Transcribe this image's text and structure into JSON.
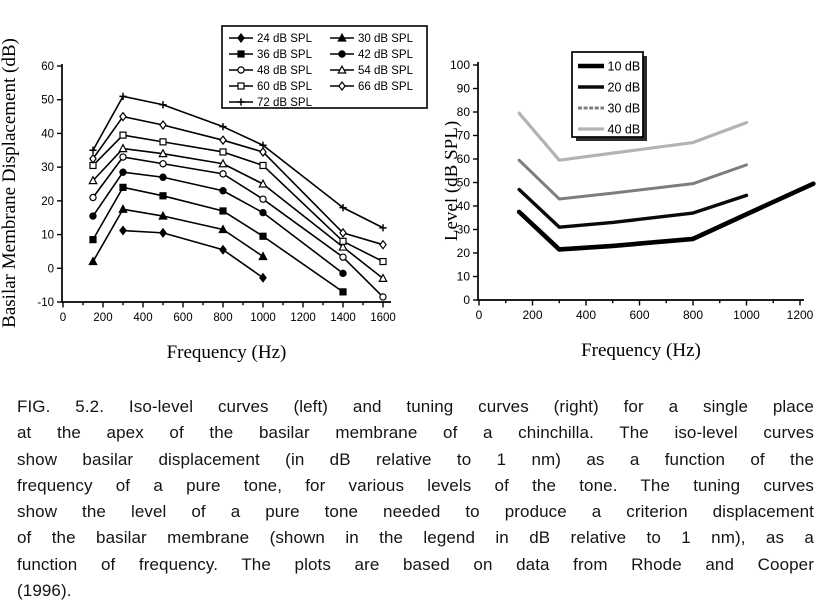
{
  "figure": {
    "caption_lines": [
      "FIG. 5.2. Iso-level curves (left) and tuning curves (right) for a single place",
      "at the apex of the basilar membrane of a chinchilla. The iso-level curves",
      "show basilar displacement (in dB relative to 1 nm) as a function of the",
      "frequency of a pure tone, for various levels of the tone. The tuning curves",
      "show the level of a pure tone needed to produce a criterion displacement",
      "of the basilar membrane (shown in the legend in dB relative to 1 nm), as a",
      "function of frequency. The plots are based on data from Rhode and Cooper",
      "(1996)."
    ]
  },
  "chart_data": [
    {
      "id": "iso_level_curves",
      "type": "line",
      "title": "",
      "xlabel": "Frequency (Hz)",
      "ylabel": "Basilar Membrane Displacement (dB)",
      "xlim": [
        0,
        1650
      ],
      "ylim": [
        -10,
        60
      ],
      "xticks_major": [
        0,
        200,
        400,
        600,
        800,
        1000,
        1200,
        1400,
        1600
      ],
      "xtick_minor_step": 100,
      "yticks": [
        -10,
        0,
        10,
        20,
        30,
        40,
        50,
        60
      ],
      "grid": false,
      "legend_position": "top-right",
      "legend_columns": 2,
      "series": [
        {
          "name": "24 dB SPL",
          "marker": "diamond-filled",
          "color": "#000000",
          "points": [
            [
              300,
              11.2
            ],
            [
              500,
              10.5
            ],
            [
              800,
              5.5
            ],
            [
              1000,
              -2.8
            ]
          ]
        },
        {
          "name": "30 dB SPL",
          "marker": "triangle-filled",
          "color": "#000000",
          "points": [
            [
              150,
              2
            ],
            [
              300,
              17.5
            ],
            [
              500,
              15.5
            ],
            [
              800,
              11.5
            ],
            [
              1000,
              3.5
            ]
          ]
        },
        {
          "name": "36 dB SPL",
          "marker": "square-filled",
          "color": "#000000",
          "points": [
            [
              150,
              8.5
            ],
            [
              300,
              24
            ],
            [
              500,
              21.5
            ],
            [
              800,
              17
            ],
            [
              1000,
              9.5
            ],
            [
              1400,
              -7
            ]
          ]
        },
        {
          "name": "42 dB SPL",
          "marker": "circle-filled",
          "color": "#000000",
          "points": [
            [
              150,
              15.5
            ],
            [
              300,
              28.5
            ],
            [
              500,
              27
            ],
            [
              800,
              23
            ],
            [
              1000,
              16.5
            ],
            [
              1400,
              -1.5
            ]
          ]
        },
        {
          "name": "48 dB SPL",
          "marker": "circle-open",
          "color": "#000000",
          "points": [
            [
              150,
              21
            ],
            [
              300,
              33
            ],
            [
              500,
              31
            ],
            [
              800,
              28
            ],
            [
              1000,
              20.5
            ],
            [
              1400,
              3.3
            ],
            [
              1600,
              -8.5
            ]
          ]
        },
        {
          "name": "54 dB SPL",
          "marker": "triangle-open",
          "color": "#000000",
          "points": [
            [
              150,
              26
            ],
            [
              300,
              35.5
            ],
            [
              500,
              34
            ],
            [
              800,
              31
            ],
            [
              1000,
              25
            ],
            [
              1400,
              6.3
            ],
            [
              1600,
              -3
            ]
          ]
        },
        {
          "name": "60 dB SPL",
          "marker": "square-open",
          "color": "#000000",
          "points": [
            [
              150,
              30.5
            ],
            [
              300,
              39.5
            ],
            [
              500,
              37.5
            ],
            [
              800,
              34.5
            ],
            [
              1000,
              30.5
            ],
            [
              1400,
              8
            ],
            [
              1600,
              2
            ]
          ]
        },
        {
          "name": "66 dB SPL",
          "marker": "diamond-open",
          "color": "#000000",
          "points": [
            [
              150,
              32.5
            ],
            [
              300,
              45
            ],
            [
              500,
              42.5
            ],
            [
              800,
              38
            ],
            [
              1000,
              34.5
            ],
            [
              1400,
              10.5
            ],
            [
              1600,
              7
            ]
          ]
        },
        {
          "name": "72 dB SPL",
          "marker": "plus",
          "color": "#000000",
          "points": [
            [
              150,
              35
            ],
            [
              300,
              51
            ],
            [
              500,
              48.5
            ],
            [
              800,
              42
            ],
            [
              1000,
              36.5
            ],
            [
              1400,
              18
            ],
            [
              1600,
              12
            ]
          ]
        }
      ]
    },
    {
      "id": "tuning_curves",
      "type": "line",
      "title": "",
      "xlabel": "Frequency (Hz)",
      "ylabel": "Level (dB SPL)",
      "xlim": [
        0,
        1300
      ],
      "ylim": [
        0,
        100
      ],
      "xticks_major": [
        0,
        200,
        400,
        600,
        800,
        1000,
        1200
      ],
      "xtick_minor_step": 100,
      "yticks": [
        0,
        10,
        20,
        30,
        40,
        50,
        60,
        70,
        80,
        90,
        100
      ],
      "grid": false,
      "legend_position": "top-center",
      "legend_columns": 1,
      "series": [
        {
          "name": "10 dB",
          "color": "#000000",
          "width": 4.6,
          "points": [
            [
              150,
              37.5
            ],
            [
              300,
              21.5
            ],
            [
              500,
              23
            ],
            [
              800,
              26
            ],
            [
              1000,
              36.5
            ],
            [
              1250,
              49.5
            ]
          ]
        },
        {
          "name": "20 dB",
          "color": "#0a0a0a",
          "width": 3.4,
          "points": [
            [
              150,
              47
            ],
            [
              300,
              31
            ],
            [
              500,
              33
            ],
            [
              800,
              37
            ],
            [
              1000,
              44.5
            ]
          ]
        },
        {
          "name": "30 dB",
          "color": "#7d7d7d",
          "width": 3.0,
          "legend_style": "dashed",
          "points": [
            [
              150,
              59.5
            ],
            [
              300,
              43
            ],
            [
              500,
              45.5
            ],
            [
              800,
              49.5
            ],
            [
              1000,
              57.5
            ]
          ]
        },
        {
          "name": "40 dB",
          "color": "#b3b3b3",
          "width": 3.2,
          "points": [
            [
              150,
              79.5
            ],
            [
              300,
              59.5
            ],
            [
              500,
              62.5
            ],
            [
              800,
              67
            ],
            [
              1000,
              75.5
            ]
          ]
        }
      ]
    }
  ]
}
